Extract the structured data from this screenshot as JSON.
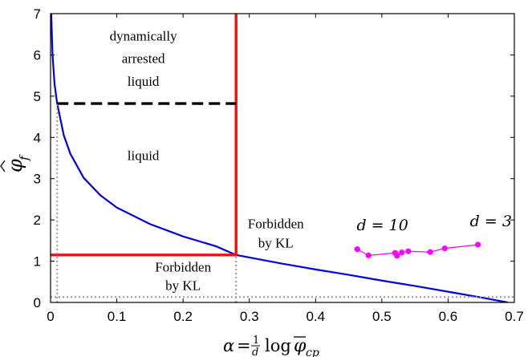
{
  "chart_data": {
    "type": "line",
    "xlabel": "α = (1/d) log φ̄_cp",
    "ylabel": "φ̂_f",
    "xlim": [
      0,
      0.7
    ],
    "ylim": [
      0,
      7
    ],
    "x_ticks": [
      "0",
      "0.1",
      "0.2",
      "0.3",
      "0.4",
      "0.5",
      "0.6",
      "0.7"
    ],
    "y_ticks": [
      "0",
      "1",
      "2",
      "3",
      "4",
      "5",
      "6",
      "7"
    ],
    "grid": false,
    "colors": {
      "blue_curve": "#0000e0",
      "red_lines": "#ee1111",
      "black_dashed": "#000000",
      "gray_dotted": "#999999",
      "magenta_points": "#ff00ff"
    },
    "series": [
      {
        "style": "blue-solid",
        "x": [
          0.001,
          0.003,
          0.006,
          0.01,
          0.02,
          0.03,
          0.05,
          0.075,
          0.1,
          0.15,
          0.2,
          0.25,
          0.28,
          0.35,
          0.4,
          0.45,
          0.5,
          0.55,
          0.6,
          0.65,
          0.69
        ],
        "y": [
          7.0,
          6.0,
          5.3,
          4.82,
          4.05,
          3.6,
          3.02,
          2.6,
          2.3,
          1.9,
          1.6,
          1.36,
          1.15,
          0.94,
          0.8,
          0.67,
          0.53,
          0.4,
          0.26,
          0.12,
          0.0
        ]
      },
      {
        "style": "red-solid",
        "x": [
          0,
          0.28,
          0.28
        ],
        "y": [
          1.15,
          1.15,
          7
        ]
      },
      {
        "style": "black-dashed",
        "x": [
          0.01,
          0.28
        ],
        "y": [
          4.82,
          4.82
        ]
      },
      {
        "style": "gray-dotted",
        "x": [
          0.01,
          0.01
        ],
        "y": [
          0,
          4.82
        ]
      },
      {
        "style": "gray-dotted",
        "x": [
          0,
          0.7
        ],
        "y": [
          0.13,
          0.13
        ]
      },
      {
        "style": "gray-dotted",
        "x": [
          0.28,
          0.28
        ],
        "y": [
          0,
          1.15
        ]
      },
      {
        "style": "magenta-markers",
        "x": [
          0.463,
          0.48,
          0.52,
          0.523,
          0.53,
          0.54,
          0.573,
          0.595,
          0.645
        ],
        "y": [
          1.29,
          1.14,
          1.2,
          1.13,
          1.21,
          1.24,
          1.22,
          1.31,
          1.4
        ]
      }
    ],
    "annotations": [
      {
        "text": "dynamically",
        "x": 0.14,
        "y": 6.35
      },
      {
        "text": "arrested",
        "x": 0.14,
        "y": 5.8
      },
      {
        "text": "liquid",
        "x": 0.14,
        "y": 5.25
      },
      {
        "text": "liquid",
        "x": 0.14,
        "y": 3.45
      },
      {
        "text": "Forbidden",
        "x": 0.34,
        "y": 1.8
      },
      {
        "text": "by KL",
        "x": 0.34,
        "y": 1.33
      },
      {
        "text": "Forbidden",
        "x": 0.2,
        "y": 0.75
      },
      {
        "text": "by KL",
        "x": 0.2,
        "y": 0.3
      },
      {
        "text": "d = 10",
        "x": 0.462,
        "y": 1.75
      },
      {
        "text": "d = 3",
        "x": 0.633,
        "y": 1.85
      }
    ]
  }
}
